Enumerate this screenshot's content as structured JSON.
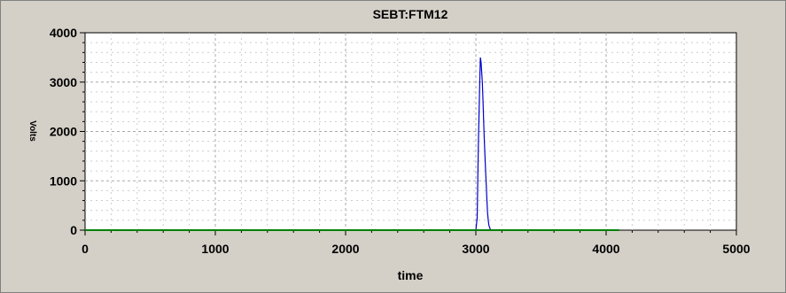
{
  "chart_data": {
    "type": "line",
    "title": "SEBT:FTM12",
    "xlabel": "time",
    "ylabel": "Volts",
    "xlim": [
      0,
      5000
    ],
    "ylim": [
      0,
      4000
    ],
    "x_ticks": [
      "0",
      "1000",
      "2000",
      "3000",
      "4000",
      "5000"
    ],
    "y_ticks": [
      "0",
      "1000",
      "2000",
      "3000",
      "4000"
    ],
    "grid": true,
    "series": [
      {
        "color": "#0000cc",
        "x": [
          0,
          2990,
          3000,
          3010,
          3020,
          3030,
          3035,
          3040,
          3045,
          3050,
          3055,
          3060,
          3065,
          3070,
          3075,
          3080,
          3085,
          3090,
          3095,
          3100,
          3110,
          3120,
          4100
        ],
        "y": [
          0,
          0,
          0,
          250,
          1800,
          3000,
          3500,
          3400,
          3200,
          3000,
          2600,
          2200,
          1800,
          1500,
          1200,
          900,
          600,
          350,
          200,
          100,
          20,
          0,
          0
        ]
      },
      {
        "color": "#008000",
        "x": [
          0,
          4100
        ],
        "y": [
          0,
          0
        ]
      }
    ]
  }
}
